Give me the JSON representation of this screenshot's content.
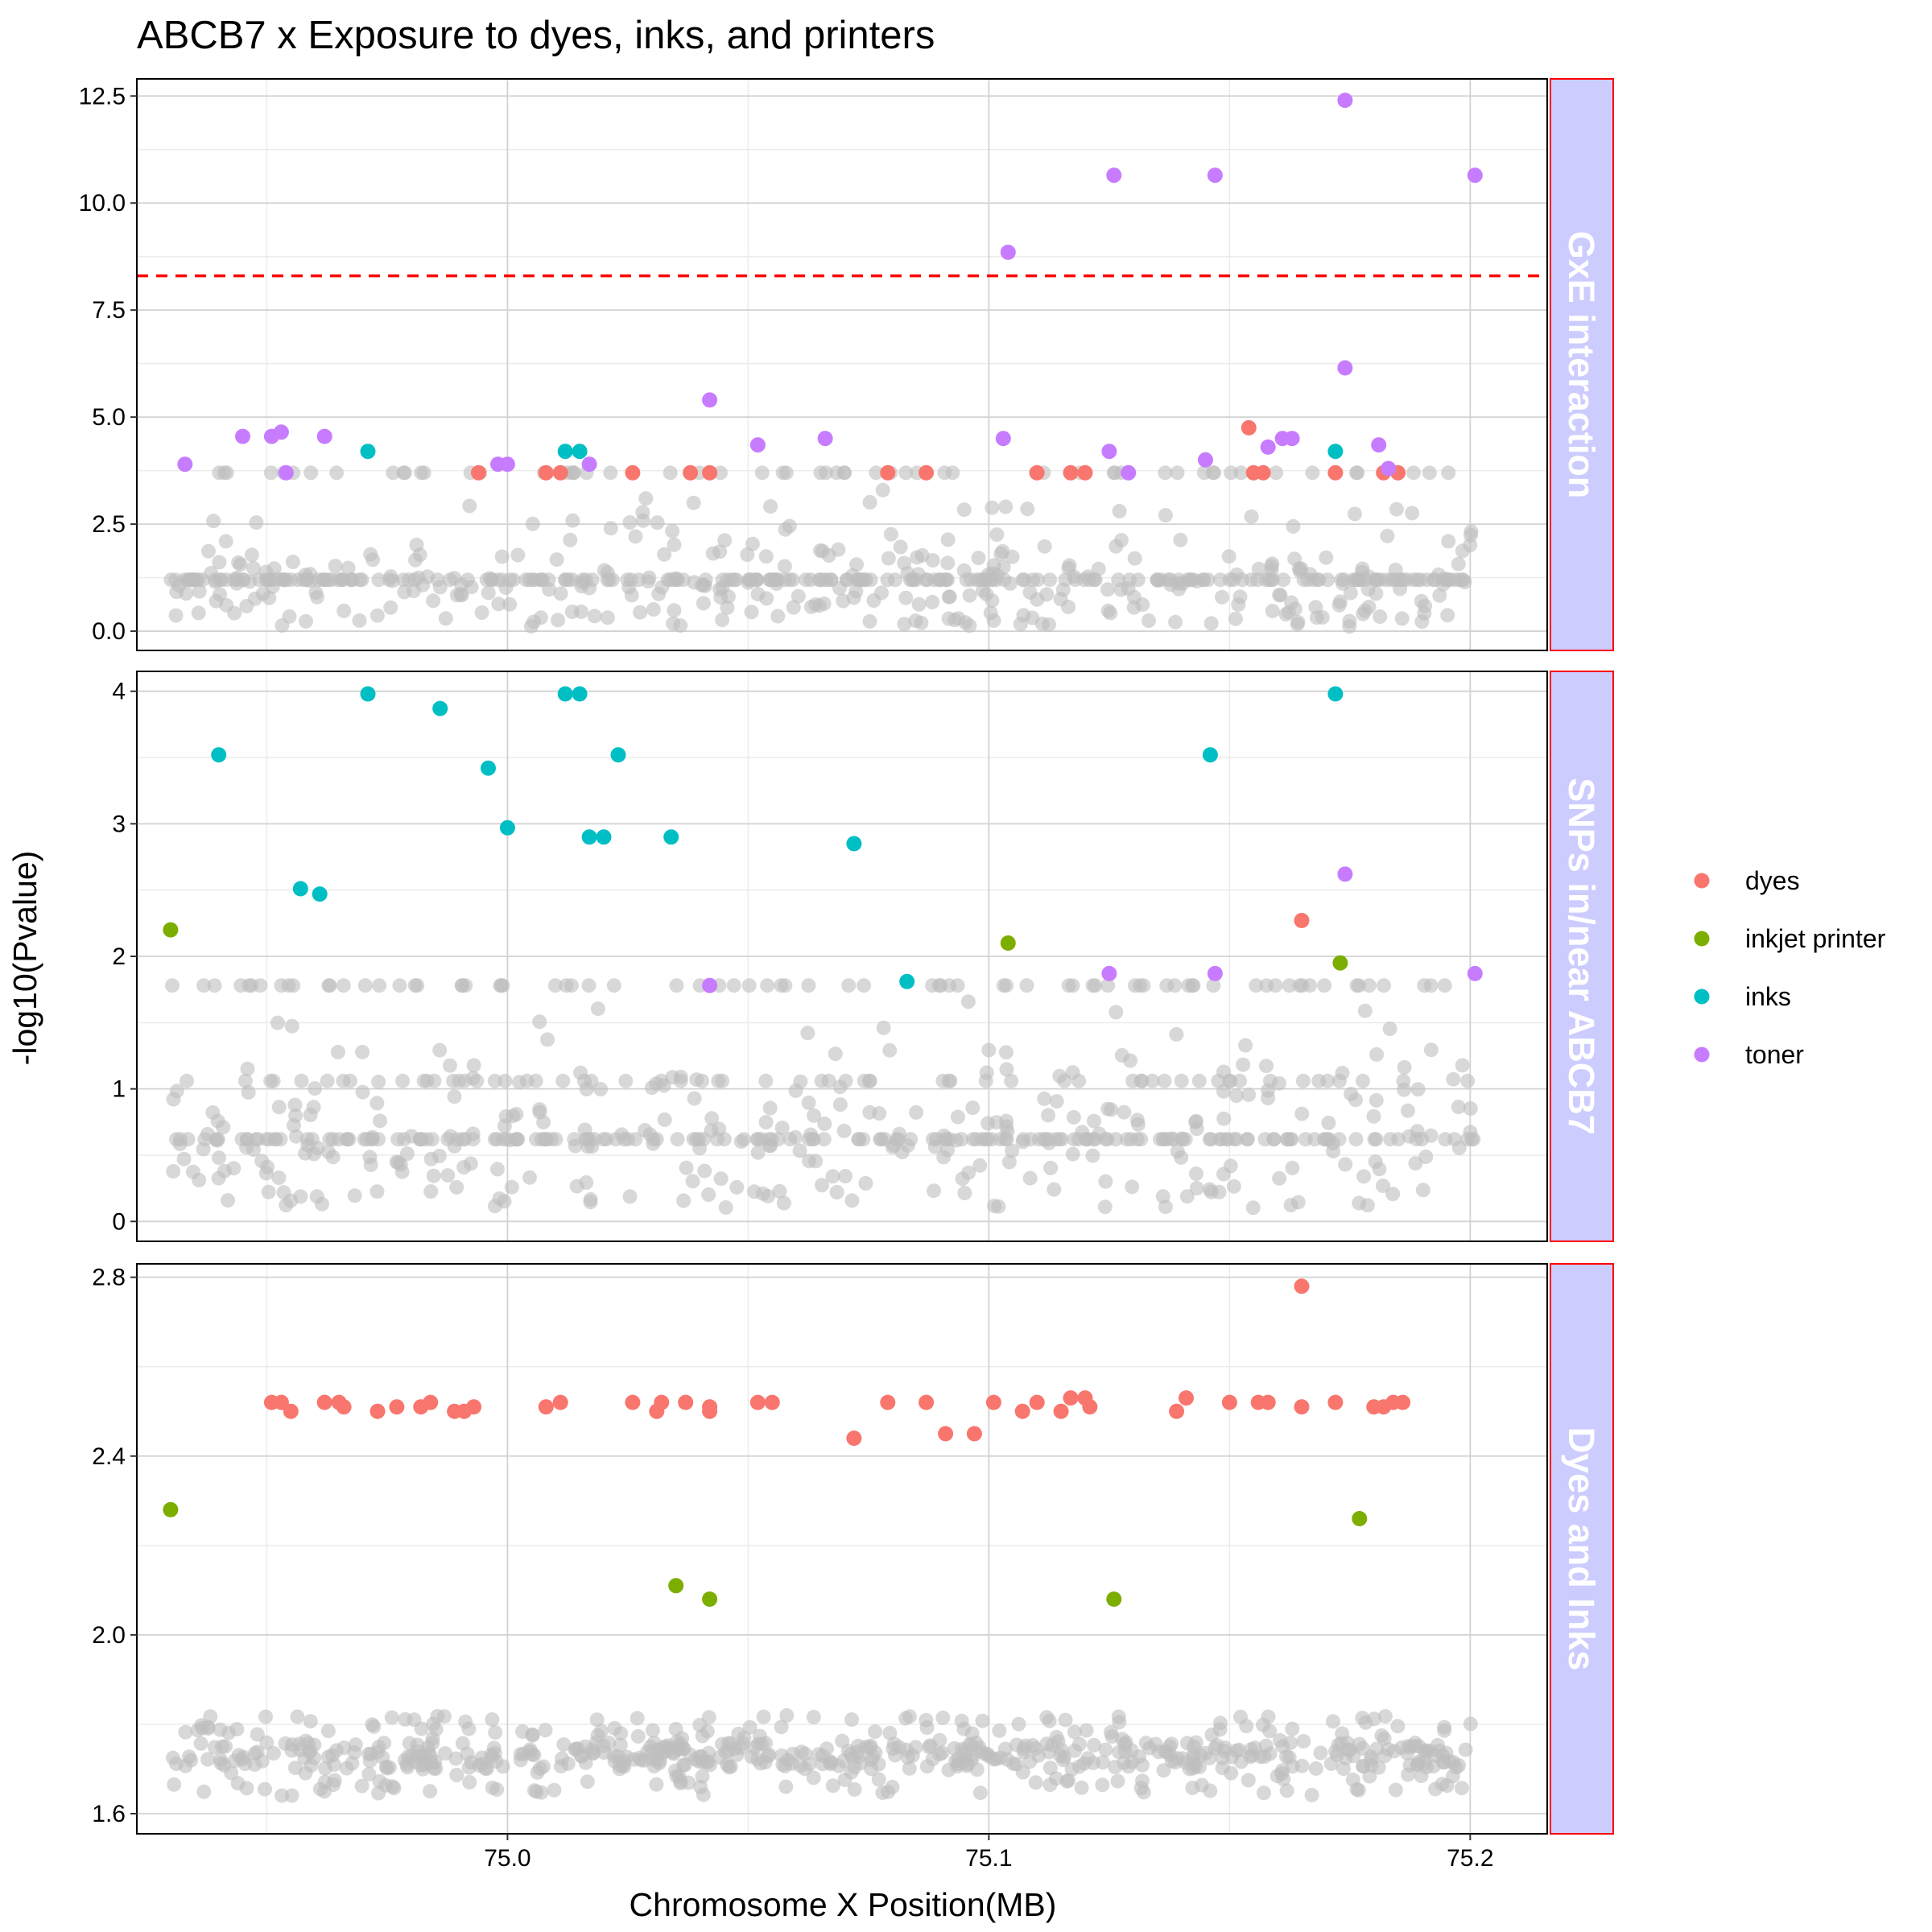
{
  "chart_data": {
    "type": "scatter",
    "title": "ABCB7 x Exposure to dyes, inks, and printers",
    "xlabel": "Chromosome X Position(MB)",
    "ylabel": "-log10(Pvalue)",
    "xlim": [
      74.923,
      75.216
    ],
    "x_ticks": [
      75.0,
      75.1,
      75.2
    ],
    "x_tick_labels": [
      "75.0",
      "75.1",
      "75.2"
    ],
    "grid": true,
    "legend_position": "right",
    "legend": [
      {
        "name": "dyes",
        "color": "#F8766D"
      },
      {
        "name": "inkjet printer",
        "color": "#7CAE00"
      },
      {
        "name": "inks",
        "color": "#00BFC4"
      },
      {
        "name": "toner",
        "color": "#C77CFF"
      }
    ],
    "background_color": "#BEBEBE",
    "facets": [
      {
        "strip_label": "GxE interaction",
        "ylim": [
          -0.45,
          12.9
        ],
        "y_ticks": [
          0.0,
          2.5,
          5.0,
          7.5,
          10.0,
          12.5
        ],
        "y_tick_labels": [
          "0.0",
          "2.5",
          "5.0",
          "7.5",
          "10.0",
          "12.5"
        ],
        "threshold": 8.3,
        "series": [
          {
            "name": "dyes",
            "points": [
              [
                74.994,
                3.7
              ],
              [
                75.008,
                3.7
              ],
              [
                75.011,
                3.7
              ],
              [
                75.026,
                3.7
              ],
              [
                75.038,
                3.7
              ],
              [
                75.042,
                3.7
              ],
              [
                75.079,
                3.7
              ],
              [
                75.087,
                3.7
              ],
              [
                75.11,
                3.7
              ],
              [
                75.117,
                3.7
              ],
              [
                75.12,
                3.7
              ],
              [
                75.154,
                4.75
              ],
              [
                75.155,
                3.7
              ],
              [
                75.157,
                3.7
              ],
              [
                75.172,
                3.7
              ],
              [
                75.182,
                3.7
              ],
              [
                75.185,
                3.7
              ]
            ]
          },
          {
            "name": "inks",
            "points": [
              [
                74.971,
                4.2
              ],
              [
                75.012,
                4.2
              ],
              [
                75.015,
                4.2
              ],
              [
                75.172,
                4.2
              ]
            ]
          },
          {
            "name": "toner",
            "points": [
              [
                74.933,
                3.9
              ],
              [
                74.945,
                4.55
              ],
              [
                74.951,
                4.55
              ],
              [
                74.953,
                4.65
              ],
              [
                74.954,
                3.7
              ],
              [
                74.962,
                4.55
              ],
              [
                74.998,
                3.9
              ],
              [
                75.0,
                3.9
              ],
              [
                75.017,
                3.9
              ],
              [
                75.042,
                5.4
              ],
              [
                75.052,
                4.35
              ],
              [
                75.066,
                4.5
              ],
              [
                75.103,
                4.5
              ],
              [
                75.104,
                8.85
              ],
              [
                75.125,
                4.2
              ],
              [
                75.126,
                10.65
              ],
              [
                75.129,
                3.7
              ],
              [
                75.145,
                4.0
              ],
              [
                75.147,
                10.65
              ],
              [
                75.158,
                4.3
              ],
              [
                75.161,
                4.5
              ],
              [
                75.163,
                4.5
              ],
              [
                75.174,
                12.4
              ],
              [
                75.174,
                6.15
              ],
              [
                75.181,
                4.35
              ],
              [
                75.183,
                3.8
              ],
              [
                75.201,
                10.65
              ]
            ]
          }
        ]
      },
      {
        "strip_label": "SNPs in/near ABCB7",
        "ylim": [
          -0.15,
          4.15
        ],
        "y_ticks": [
          0,
          1,
          2,
          3,
          4
        ],
        "y_tick_labels": [
          "0",
          "1",
          "2",
          "3",
          "4"
        ],
        "series": [
          {
            "name": "dyes",
            "points": [
              [
                75.165,
                2.27
              ]
            ]
          },
          {
            "name": "inkjet printer",
            "points": [
              [
                74.93,
                2.2
              ],
              [
                75.104,
                2.1
              ],
              [
                75.173,
                1.95
              ]
            ]
          },
          {
            "name": "inks",
            "points": [
              [
                74.94,
                3.52
              ],
              [
                74.957,
                2.51
              ],
              [
                74.961,
                2.47
              ],
              [
                74.971,
                3.98
              ],
              [
                74.986,
                3.87
              ],
              [
                74.996,
                3.42
              ],
              [
                75.0,
                2.97
              ],
              [
                75.012,
                3.98
              ],
              [
                75.015,
                3.98
              ],
              [
                75.017,
                2.9
              ],
              [
                75.02,
                2.9
              ],
              [
                75.023,
                3.52
              ],
              [
                75.034,
                2.9
              ],
              [
                75.072,
                2.85
              ],
              [
                75.083,
                1.81
              ],
              [
                75.146,
                3.52
              ],
              [
                75.172,
                3.98
              ]
            ]
          },
          {
            "name": "toner",
            "points": [
              [
                75.042,
                1.78
              ],
              [
                75.125,
                1.87
              ],
              [
                75.147,
                1.87
              ],
              [
                75.174,
                2.62
              ],
              [
                75.201,
                1.87
              ]
            ]
          }
        ]
      },
      {
        "strip_label": "Dyes and Inks",
        "ylim": [
          1.555,
          2.83
        ],
        "y_ticks": [
          1.6,
          2.0,
          2.4,
          2.8
        ],
        "y_tick_labels": [
          "1.6",
          "2.0",
          "2.4",
          "2.8"
        ],
        "series": [
          {
            "name": "dyes",
            "points": [
              [
                74.951,
                2.52
              ],
              [
                74.953,
                2.52
              ],
              [
                74.955,
                2.5
              ],
              [
                74.962,
                2.52
              ],
              [
                74.965,
                2.52
              ],
              [
                74.966,
                2.51
              ],
              [
                74.973,
                2.5
              ],
              [
                74.977,
                2.51
              ],
              [
                74.982,
                2.51
              ],
              [
                74.984,
                2.52
              ],
              [
                74.989,
                2.5
              ],
              [
                74.991,
                2.5
              ],
              [
                74.993,
                2.51
              ],
              [
                75.008,
                2.51
              ],
              [
                75.011,
                2.52
              ],
              [
                75.026,
                2.52
              ],
              [
                75.031,
                2.5
              ],
              [
                75.032,
                2.52
              ],
              [
                75.037,
                2.52
              ],
              [
                75.042,
                2.51
              ],
              [
                75.042,
                2.5
              ],
              [
                75.052,
                2.52
              ],
              [
                75.055,
                2.52
              ],
              [
                75.072,
                2.44
              ],
              [
                75.079,
                2.52
              ],
              [
                75.087,
                2.52
              ],
              [
                75.091,
                2.45
              ],
              [
                75.097,
                2.45
              ],
              [
                75.101,
                2.52
              ],
              [
                75.107,
                2.5
              ],
              [
                75.11,
                2.52
              ],
              [
                75.115,
                2.5
              ],
              [
                75.117,
                2.53
              ],
              [
                75.12,
                2.53
              ],
              [
                75.121,
                2.51
              ],
              [
                75.139,
                2.5
              ],
              [
                75.141,
                2.53
              ],
              [
                75.15,
                2.52
              ],
              [
                75.156,
                2.52
              ],
              [
                75.158,
                2.52
              ],
              [
                75.165,
                2.78
              ],
              [
                75.165,
                2.51
              ],
              [
                75.172,
                2.52
              ],
              [
                75.18,
                2.51
              ],
              [
                75.182,
                2.51
              ],
              [
                75.184,
                2.52
              ],
              [
                75.186,
                2.52
              ]
            ]
          },
          {
            "name": "inkjet printer",
            "points": [
              [
                74.93,
                2.28
              ],
              [
                75.035,
                2.11
              ],
              [
                75.042,
                2.08
              ],
              [
                75.126,
                2.08
              ],
              [
                75.177,
                2.26
              ]
            ]
          }
        ]
      }
    ]
  }
}
